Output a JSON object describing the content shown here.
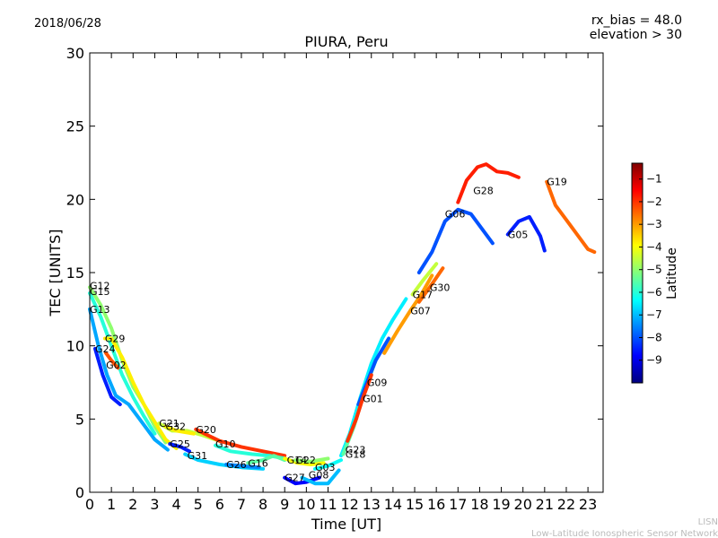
{
  "header": {
    "date": "2018/06/28",
    "rx_bias": "rx_bias = 48.0",
    "elevation": "elevation > 30"
  },
  "footer": {
    "line1": "LISN",
    "line2": "Low-Latitude Ionospheric Sensor Network"
  },
  "colorbar": {
    "label": "Latitude",
    "range": [
      -10,
      -0.3
    ],
    "ticks": [
      -9,
      -8,
      -7,
      -6,
      -5,
      -4,
      -3,
      -2,
      -1
    ],
    "tick_labels": [
      "−9",
      "−8",
      "−7",
      "−6",
      "−5",
      "−4",
      "−3",
      "−2",
      "−1"
    ],
    "colors": [
      "#00007f",
      "#0000ff",
      "#007fff",
      "#00ffff",
      "#7fff7f",
      "#ffff00",
      "#ff7f00",
      "#ff0000",
      "#7f0000"
    ]
  },
  "chart_data": {
    "type": "scatter",
    "title": "PIURA, Peru",
    "xlabel": "Time [UT]",
    "ylabel": "TEC [UNITS]",
    "xlim": [
      0,
      23.7
    ],
    "ylim": [
      0,
      30
    ],
    "xticks": [
      0,
      1,
      2,
      3,
      4,
      5,
      6,
      7,
      8,
      9,
      10,
      11,
      12,
      13,
      14,
      15,
      16,
      17,
      18,
      19,
      20,
      21,
      22,
      23
    ],
    "yticks": [
      0,
      5,
      10,
      15,
      20,
      25,
      30
    ],
    "grid": false,
    "series": [
      {
        "name": "G12",
        "label_at": [
          0.0,
          14.1
        ],
        "lat": -5.0,
        "points": [
          [
            0.0,
            14.0
          ],
          [
            0.5,
            12.8
          ],
          [
            1.0,
            11.2
          ],
          [
            1.5,
            9.0
          ],
          [
            2.0,
            7.2
          ],
          [
            2.5,
            6.0
          ],
          [
            3.0,
            4.5
          ],
          [
            3.5,
            3.4
          ]
        ]
      },
      {
        "name": "G15",
        "label_at": [
          0.0,
          13.7
        ],
        "lat": -6.0,
        "points": [
          [
            0.0,
            13.6
          ],
          [
            0.5,
            12.0
          ],
          [
            1.0,
            10.0
          ],
          [
            1.5,
            8.0
          ],
          [
            2.0,
            6.5
          ],
          [
            2.5,
            5.2
          ],
          [
            3.0,
            4.0
          ]
        ]
      },
      {
        "name": "G13",
        "label_at": [
          0.0,
          12.5
        ],
        "lat": -7.2,
        "points": [
          [
            0.0,
            12.5
          ],
          [
            0.4,
            10.0
          ],
          [
            0.8,
            8.0
          ],
          [
            1.2,
            6.6
          ],
          [
            1.8,
            6.0
          ],
          [
            2.3,
            5.0
          ],
          [
            3.0,
            3.6
          ],
          [
            3.6,
            2.9
          ]
        ]
      },
      {
        "name": "G29",
        "label_at": [
          0.7,
          10.5
        ],
        "lat": -3.8,
        "points": [
          [
            0.7,
            10.5
          ],
          [
            1.0,
            10.5
          ],
          [
            1.5,
            9.2
          ],
          [
            2.0,
            7.5
          ],
          [
            2.5,
            6.0
          ],
          [
            3.0,
            4.8
          ],
          [
            3.5,
            3.6
          ],
          [
            4.0,
            3.0
          ]
        ]
      },
      {
        "name": "G24",
        "label_at": [
          0.25,
          9.8
        ],
        "lat": -8.5,
        "points": [
          [
            0.25,
            9.8
          ],
          [
            0.6,
            8.0
          ],
          [
            1.0,
            6.5
          ],
          [
            1.4,
            6.0
          ]
        ]
      },
      {
        "name": "G02",
        "label_at": [
          0.75,
          8.7
        ],
        "lat": -2.3,
        "points": [
          [
            0.75,
            9.5
          ],
          [
            1.0,
            9.0
          ],
          [
            1.3,
            8.5
          ]
        ]
      },
      {
        "name": "G21",
        "label_at": [
          3.2,
          4.7
        ],
        "lat": -4.5,
        "points": [
          [
            3.2,
            4.7
          ],
          [
            3.8,
            4.2
          ],
          [
            4.5,
            4.2
          ],
          [
            5.2,
            3.9
          ],
          [
            6.0,
            3.5
          ]
        ]
      },
      {
        "name": "G32",
        "label_at": [
          3.5,
          4.5
        ],
        "lat": -3.8,
        "points": [
          [
            3.5,
            4.5
          ],
          [
            4.0,
            4.2
          ],
          [
            4.8,
            4.0
          ]
        ]
      },
      {
        "name": "G25",
        "label_at": [
          3.7,
          3.3
        ],
        "lat": -8.5,
        "points": [
          [
            3.7,
            3.3
          ],
          [
            4.2,
            3.1
          ],
          [
            4.6,
            2.8
          ]
        ]
      },
      {
        "name": "G31",
        "label_at": [
          4.5,
          2.5
        ],
        "lat": -6.8,
        "points": [
          [
            4.4,
            2.6
          ],
          [
            5.0,
            2.2
          ],
          [
            6.0,
            1.9
          ],
          [
            7.0,
            1.7
          ],
          [
            8.0,
            1.6
          ]
        ]
      },
      {
        "name": "G20",
        "label_at": [
          4.9,
          4.3
        ],
        "lat": -2.0,
        "points": [
          [
            4.9,
            4.3
          ],
          [
            5.3,
            4.0
          ],
          [
            6.0,
            3.5
          ],
          [
            7.0,
            3.1
          ],
          [
            8.0,
            2.8
          ],
          [
            9.0,
            2.5
          ]
        ]
      },
      {
        "name": "G10",
        "label_at": [
          5.8,
          3.3
        ],
        "lat": -6.0,
        "points": [
          [
            5.8,
            3.2
          ],
          [
            6.5,
            2.8
          ],
          [
            7.5,
            2.6
          ],
          [
            8.3,
            2.5
          ],
          [
            9.0,
            2.3
          ]
        ]
      },
      {
        "name": "G26",
        "label_at": [
          6.3,
          1.9
        ],
        "lat": -7.5,
        "points": [
          [
            6.3,
            1.9
          ],
          [
            7.0,
            1.8
          ],
          [
            7.8,
            1.7
          ]
        ]
      },
      {
        "name": "G16",
        "label_at": [
          7.3,
          2.0
        ],
        "lat": -5.5,
        "points": [
          [
            7.3,
            2.0
          ],
          [
            8.0,
            2.2
          ],
          [
            8.5,
            2.5
          ],
          [
            9.0,
            2.2
          ]
        ]
      },
      {
        "name": "G14",
        "label_at": [
          9.1,
          2.2
        ],
        "lat": -4.0,
        "points": [
          [
            9.0,
            2.3
          ],
          [
            9.6,
            2.0
          ],
          [
            10.2,
            1.9
          ],
          [
            10.8,
            2.0
          ]
        ]
      },
      {
        "name": "G22",
        "label_at": [
          9.5,
          2.2
        ],
        "lat": -5.0,
        "points": [
          [
            9.5,
            2.2
          ],
          [
            10.2,
            2.1
          ],
          [
            11.0,
            2.3
          ]
        ]
      },
      {
        "name": "G27",
        "label_at": [
          9.0,
          1.0
        ],
        "lat": -8.8,
        "points": [
          [
            9.0,
            1.0
          ],
          [
            9.5,
            0.6
          ],
          [
            10.0,
            0.7
          ],
          [
            10.6,
            1.0
          ]
        ]
      },
      {
        "name": "G03",
        "label_at": [
          10.4,
          1.7
        ],
        "lat": -6.3,
        "points": [
          [
            10.4,
            1.6
          ],
          [
            11.0,
            1.8
          ],
          [
            11.6,
            2.2
          ]
        ]
      },
      {
        "name": "G08",
        "label_at": [
          10.1,
          1.2
        ],
        "lat": -7.0,
        "points": [
          [
            9.8,
            1.0
          ],
          [
            10.4,
            0.6
          ],
          [
            11.0,
            0.6
          ],
          [
            11.5,
            1.5
          ]
        ]
      },
      {
        "name": "G23",
        "label_at": [
          11.8,
          2.9
        ],
        "lat": -6.5,
        "points": [
          [
            11.6,
            2.5
          ],
          [
            12.0,
            4.0
          ],
          [
            12.5,
            6.5
          ],
          [
            13.0,
            8.8
          ],
          [
            13.5,
            10.5
          ],
          [
            14.0,
            11.8
          ],
          [
            14.6,
            13.2
          ]
        ]
      },
      {
        "name": "G18",
        "label_at": [
          11.8,
          2.6
        ],
        "lat": -5.5,
        "points": [
          [
            11.7,
            2.6
          ],
          [
            12.2,
            4.5
          ],
          [
            12.7,
            7.0
          ],
          [
            13.2,
            9.0
          ]
        ]
      },
      {
        "name": "G09",
        "label_at": [
          12.8,
          7.5
        ],
        "lat": -8.0,
        "points": [
          [
            12.4,
            6.0
          ],
          [
            12.8,
            7.5
          ],
          [
            13.2,
            9.0
          ],
          [
            13.8,
            10.5
          ]
        ]
      },
      {
        "name": "G01",
        "label_at": [
          12.6,
          6.4
        ],
        "lat": -2.0,
        "points": [
          [
            11.9,
            3.5
          ],
          [
            12.3,
            5.0
          ],
          [
            12.6,
            6.4
          ],
          [
            13.0,
            8.0
          ]
        ]
      },
      {
        "name": "G07",
        "label_at": [
          14.8,
          12.4
        ],
        "lat": -3.0,
        "points": [
          [
            13.6,
            9.5
          ],
          [
            14.2,
            11.0
          ],
          [
            14.8,
            12.4
          ],
          [
            15.3,
            13.5
          ],
          [
            15.8,
            14.8
          ]
        ]
      },
      {
        "name": "G17",
        "label_at": [
          14.9,
          13.5
        ],
        "lat": -4.5,
        "points": [
          [
            14.9,
            13.5
          ],
          [
            15.4,
            14.5
          ],
          [
            16.0,
            15.6
          ]
        ]
      },
      {
        "name": "G30",
        "label_at": [
          15.7,
          14.0
        ],
        "lat": -2.5,
        "points": [
          [
            15.2,
            13.0
          ],
          [
            15.7,
            14.0
          ],
          [
            16.3,
            15.3
          ]
        ]
      },
      {
        "name": "G06",
        "label_at": [
          16.4,
          19.0
        ],
        "lat": -8.0,
        "points": [
          [
            15.2,
            15.0
          ],
          [
            15.8,
            16.4
          ],
          [
            16.4,
            18.5
          ],
          [
            17.0,
            19.3
          ],
          [
            17.6,
            19.0
          ],
          [
            18.2,
            17.8
          ],
          [
            18.6,
            17.0
          ]
        ]
      },
      {
        "name": "G28",
        "label_at": [
          17.7,
          20.6
        ],
        "lat": -1.8,
        "points": [
          [
            17.0,
            19.8
          ],
          [
            17.4,
            21.3
          ],
          [
            17.9,
            22.2
          ],
          [
            18.3,
            22.4
          ],
          [
            18.8,
            21.9
          ],
          [
            19.3,
            21.8
          ],
          [
            19.8,
            21.5
          ]
        ]
      },
      {
        "name": "G05",
        "label_at": [
          19.3,
          17.6
        ],
        "lat": -8.5,
        "points": [
          [
            19.3,
            17.6
          ],
          [
            19.8,
            18.5
          ],
          [
            20.3,
            18.8
          ],
          [
            20.8,
            17.5
          ],
          [
            21.0,
            16.5
          ]
        ]
      },
      {
        "name": "G19",
        "label_at": [
          21.1,
          21.2
        ],
        "lat": -2.5,
        "points": [
          [
            21.1,
            21.2
          ],
          [
            21.5,
            19.6
          ],
          [
            22.0,
            18.6
          ],
          [
            22.5,
            17.6
          ],
          [
            23.0,
            16.6
          ],
          [
            23.3,
            16.4
          ]
        ]
      }
    ]
  }
}
